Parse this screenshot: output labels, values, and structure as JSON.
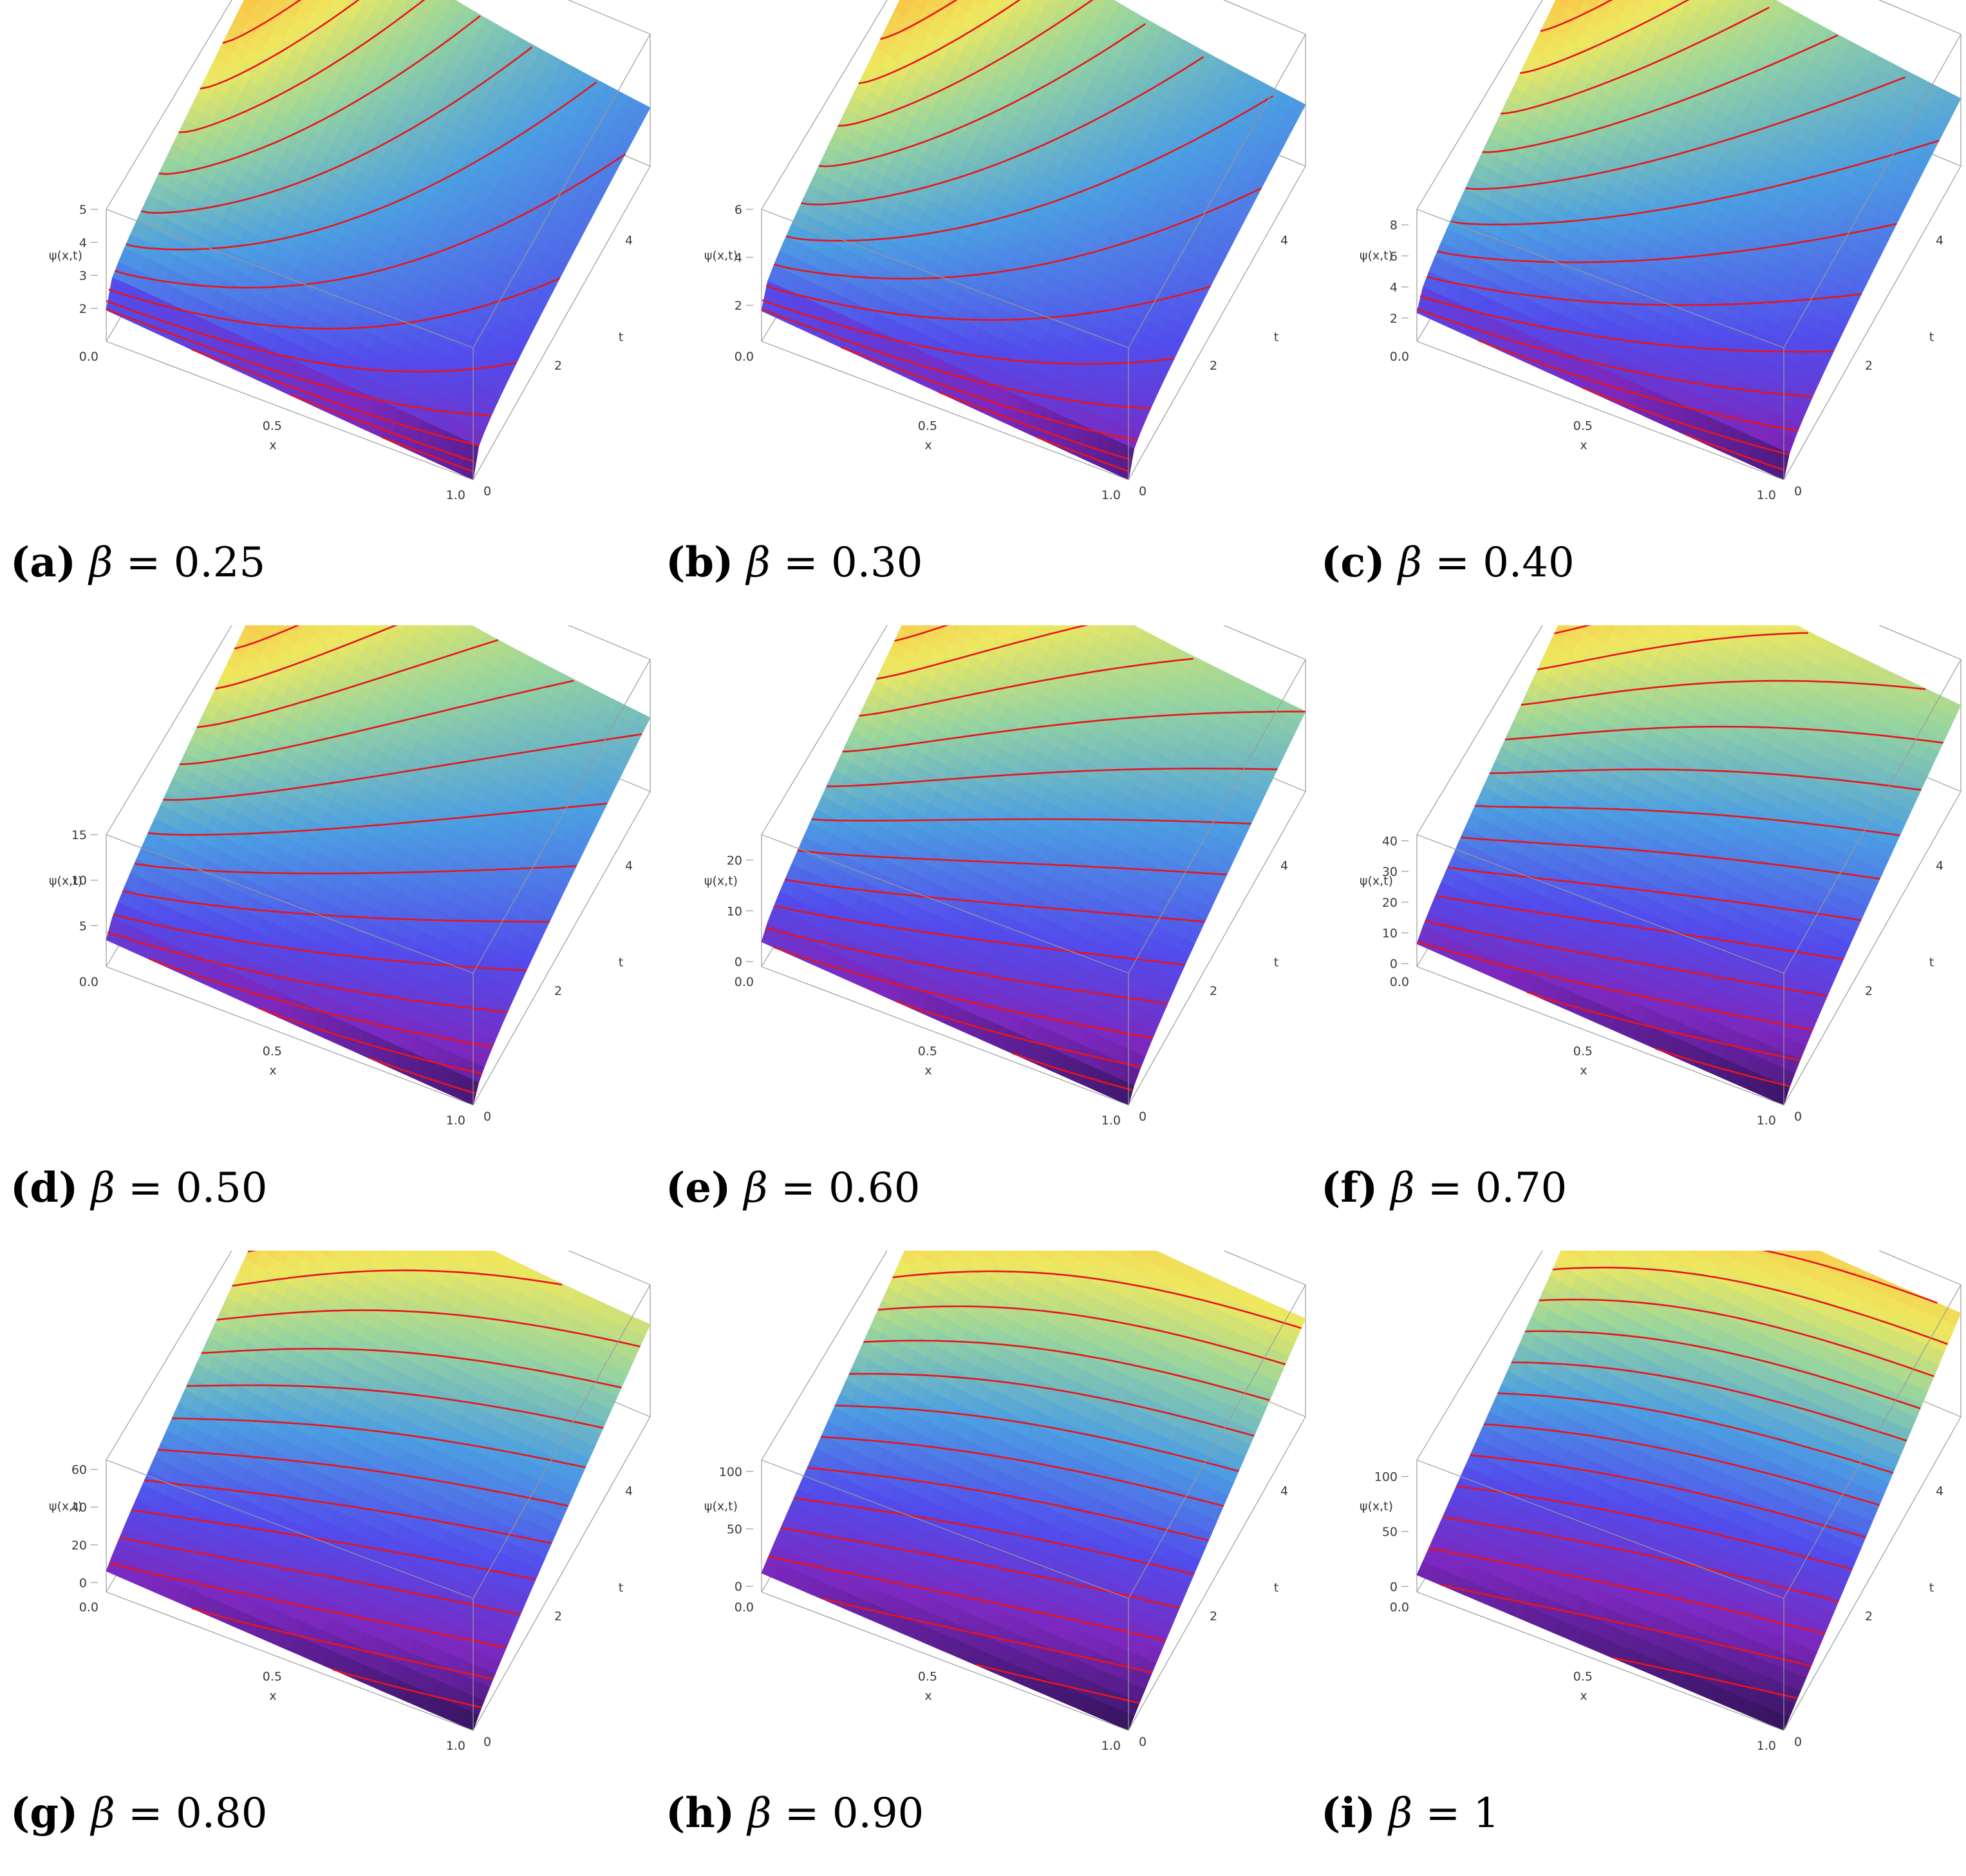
{
  "figure": {
    "x_axis_label": "x",
    "t_axis_label": "t",
    "z_axis_label": "ψ(x,t)",
    "x_ticks": [
      "0.0",
      "0.5",
      "1.0"
    ],
    "t_ticks": [
      "0",
      "2",
      "4"
    ],
    "colors": {
      "contour": "#e8141b",
      "box": "#9a9a9a"
    }
  },
  "chart_data": [
    {
      "type": "surface3d",
      "caption_letter": "(a)",
      "caption_value": "= 0.25",
      "beta": 0.25,
      "z_ticks": [
        2,
        3,
        4,
        5
      ],
      "zlim": [
        1,
        5
      ],
      "xlim": [
        0,
        1
      ],
      "tlim": [
        0,
        5
      ]
    },
    {
      "type": "surface3d",
      "caption_letter": "(b)",
      "caption_value": "= 0.30",
      "beta": 0.3,
      "z_ticks": [
        2,
        4,
        6
      ],
      "zlim": [
        0.5,
        6
      ],
      "xlim": [
        0,
        1
      ],
      "tlim": [
        0,
        5
      ]
    },
    {
      "type": "surface3d",
      "caption_letter": "(c)",
      "caption_value": "= 0.40",
      "beta": 0.4,
      "z_ticks": [
        2,
        4,
        6,
        8
      ],
      "zlim": [
        0.5,
        9
      ],
      "xlim": [
        0,
        1
      ],
      "tlim": [
        0,
        5
      ]
    },
    {
      "type": "surface3d",
      "caption_letter": "(d)",
      "caption_value": "= 0.50",
      "beta": 0.5,
      "z_ticks": [
        5,
        10,
        15
      ],
      "zlim": [
        0.5,
        15
      ],
      "xlim": [
        0,
        1
      ],
      "tlim": [
        0,
        5
      ]
    },
    {
      "type": "surface3d",
      "caption_letter": "(e)",
      "caption_value": "= 0.60",
      "beta": 0.6,
      "z_ticks": [
        0,
        10,
        20
      ],
      "zlim": [
        -1,
        25
      ],
      "xlim": [
        0,
        1
      ],
      "tlim": [
        0,
        5
      ]
    },
    {
      "type": "surface3d",
      "caption_letter": "(f)",
      "caption_value": "= 0.70",
      "beta": 0.7,
      "z_ticks": [
        0,
        10,
        20,
        30,
        40
      ],
      "zlim": [
        -1,
        42
      ],
      "xlim": [
        0,
        1
      ],
      "tlim": [
        0,
        5
      ]
    },
    {
      "type": "surface3d",
      "caption_letter": "(g)",
      "caption_value": "= 0.80",
      "beta": 0.8,
      "z_ticks": [
        0,
        20,
        40,
        60
      ],
      "zlim": [
        -5,
        65
      ],
      "xlim": [
        0,
        1
      ],
      "tlim": [
        0,
        5
      ]
    },
    {
      "type": "surface3d",
      "caption_letter": "(h)",
      "caption_value": "= 0.90",
      "beta": 0.9,
      "z_ticks": [
        0,
        50,
        100
      ],
      "zlim": [
        -5,
        110
      ],
      "xlim": [
        0,
        1
      ],
      "tlim": [
        0,
        5
      ]
    },
    {
      "type": "surface3d",
      "caption_letter": "(i)",
      "caption_value": "= 1",
      "beta": 1.0,
      "z_ticks": [
        0,
        50,
        100
      ],
      "zlim": [
        -5,
        115
      ],
      "xlim": [
        0,
        1
      ],
      "tlim": [
        0,
        5
      ]
    }
  ]
}
